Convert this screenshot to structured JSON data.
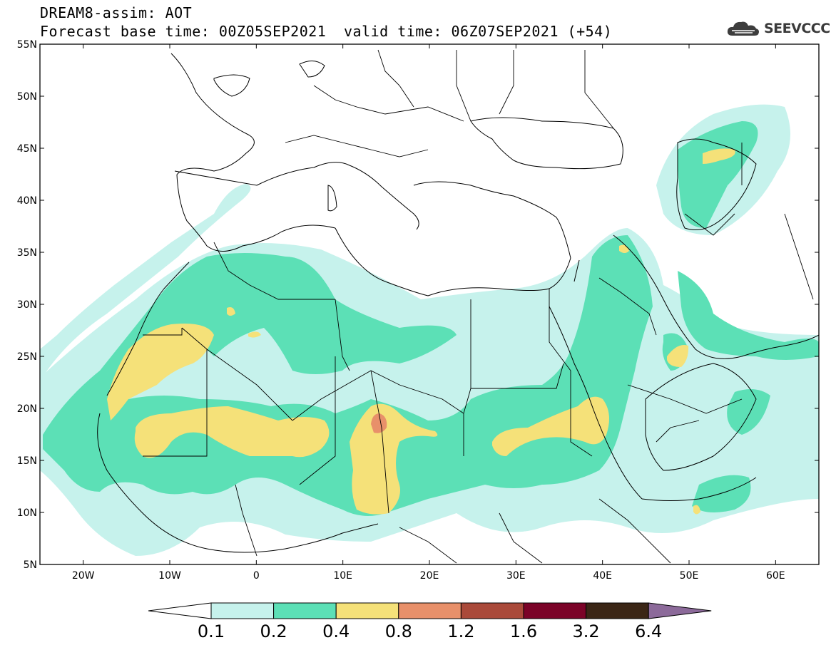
{
  "header": {
    "title_line1": "DREAM8-assim: AOT",
    "title_line2": "Forecast base time: 00Z05SEP2021",
    "valid_time": "valid time: 06Z07SEP2021 (+54)",
    "logo_text": "SEEVCCC",
    "logo_icon": "cloud-icon"
  },
  "map": {
    "x_ticks": [
      "20W",
      "10W",
      "0",
      "10E",
      "20E",
      "30E",
      "40E",
      "50E",
      "60E"
    ],
    "y_ticks": [
      "55N",
      "50N",
      "45N",
      "40N",
      "35N",
      "30N",
      "25N",
      "20N",
      "15N",
      "10N",
      "5N"
    ],
    "lon_range": [
      -25,
      65
    ],
    "lat_range": [
      5,
      55
    ],
    "field": "AOT"
  },
  "colorbar": {
    "labels": [
      "0.1",
      "0.2",
      "0.4",
      "0.8",
      "1.2",
      "1.6",
      "3.2",
      "6.4"
    ],
    "colors": [
      "#c6f2ec",
      "#5ce0b6",
      "#f5e179",
      "#e8906a",
      "#aa4a3a",
      "#7b0328",
      "#3b2616",
      "#8c6a9a"
    ],
    "under_color": "#ffffff"
  }
}
